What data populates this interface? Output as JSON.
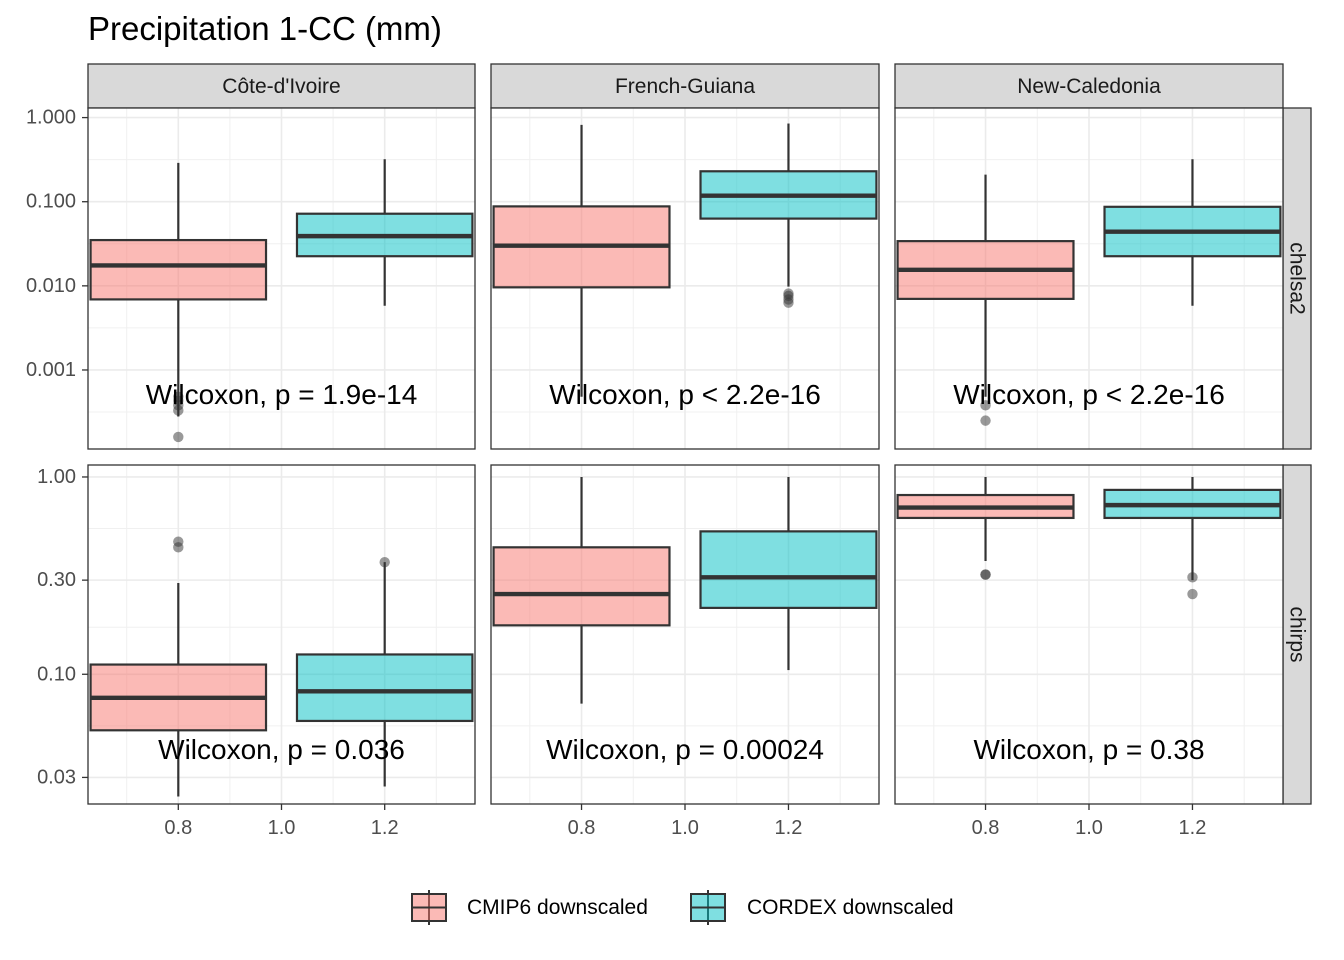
{
  "chart_data": {
    "type": "boxplot",
    "title": "Precipitation 1-CC (mm)",
    "facet_cols": [
      "Côte-d'Ivoire",
      "French-Guiana",
      "New-Caledonia"
    ],
    "facet_rows": [
      "chelsa2",
      "chirps"
    ],
    "x_axis": {
      "range": [
        0.625,
        1.375
      ],
      "ticks": [
        0.8,
        1.0,
        1.2
      ],
      "tick_labels": [
        "0.8",
        "1.0",
        "1.2"
      ]
    },
    "y_scale": "log10",
    "rows": [
      {
        "name": "chelsa2",
        "ylim": [
          0.000115,
          1.3
        ],
        "ticks": [
          0.001,
          0.01,
          0.1,
          1
        ],
        "tick_labels": [
          "0.001",
          "0.010",
          "0.100",
          "1.000"
        ]
      },
      {
        "name": "chirps",
        "ylim": [
          0.022,
          1.15
        ],
        "ticks": [
          0.03,
          0.1,
          0.3,
          1
        ],
        "tick_labels": [
          "0.03",
          "0.10",
          "0.30",
          "1.00"
        ]
      }
    ],
    "series": [
      {
        "name": "CMIP6 downscaled",
        "x": 0.8,
        "color": "#F8766D"
      },
      {
        "name": "CORDEX downscaled",
        "x": 1.2,
        "color": "#00BFC4"
      }
    ],
    "box_width": 0.34,
    "legend": {
      "position": "bottom"
    },
    "grid": true,
    "panels": [
      {
        "row": 0,
        "col": 0,
        "annotation": "Wilcoxon, p = 1.9e-14",
        "boxes": [
          {
            "min": 0.00028,
            "q1": 0.0069,
            "median": 0.0175,
            "q3": 0.035,
            "max": 0.29,
            "outliers": [
              0.00016,
              0.00033,
              0.00038,
              0.00043,
              0.00048
            ]
          },
          {
            "min": 0.0058,
            "q1": 0.0225,
            "median": 0.039,
            "q3": 0.072,
            "max": 0.32,
            "outliers": []
          }
        ]
      },
      {
        "row": 0,
        "col": 1,
        "annotation": "Wilcoxon, p < 2.2e-16",
        "boxes": [
          {
            "min": 0.00048,
            "q1": 0.0096,
            "median": 0.03,
            "q3": 0.088,
            "max": 0.82,
            "outliers": []
          },
          {
            "min": 0.0098,
            "q1": 0.063,
            "median": 0.118,
            "q3": 0.23,
            "max": 0.85,
            "outliers": [
              0.0063,
              0.0069,
              0.0076,
              0.0081
            ]
          }
        ]
      },
      {
        "row": 0,
        "col": 2,
        "annotation": "Wilcoxon, p < 2.2e-16",
        "boxes": [
          {
            "min": 0.00048,
            "q1": 0.007,
            "median": 0.0155,
            "q3": 0.034,
            "max": 0.21,
            "outliers": [
              0.00025,
              0.00038
            ]
          },
          {
            "min": 0.0058,
            "q1": 0.0225,
            "median": 0.044,
            "q3": 0.087,
            "max": 0.32,
            "outliers": []
          }
        ]
      },
      {
        "row": 1,
        "col": 0,
        "annotation": "Wilcoxon, p = 0.036",
        "boxes": [
          {
            "min": 0.024,
            "q1": 0.052,
            "median": 0.076,
            "q3": 0.112,
            "max": 0.29,
            "outliers": [
              0.44,
              0.47
            ]
          },
          {
            "min": 0.027,
            "q1": 0.058,
            "median": 0.082,
            "q3": 0.126,
            "max": 0.37,
            "outliers": [
              0.37
            ]
          }
        ]
      },
      {
        "row": 1,
        "col": 1,
        "annotation": "Wilcoxon, p = 0.00024",
        "boxes": [
          {
            "min": 0.071,
            "q1": 0.177,
            "median": 0.255,
            "q3": 0.44,
            "max": 1.0,
            "outliers": []
          },
          {
            "min": 0.105,
            "q1": 0.217,
            "median": 0.31,
            "q3": 0.53,
            "max": 1.0,
            "outliers": []
          }
        ]
      },
      {
        "row": 1,
        "col": 2,
        "annotation": "Wilcoxon, p = 0.38",
        "boxes": [
          {
            "min": 0.375,
            "q1": 0.62,
            "median": 0.7,
            "q3": 0.81,
            "max": 1.0,
            "outliers": [
              0.32,
              0.32
            ]
          },
          {
            "min": 0.3,
            "q1": 0.62,
            "median": 0.72,
            "q3": 0.86,
            "max": 1.0,
            "outliers": [
              0.31,
              0.255
            ]
          }
        ]
      }
    ]
  }
}
